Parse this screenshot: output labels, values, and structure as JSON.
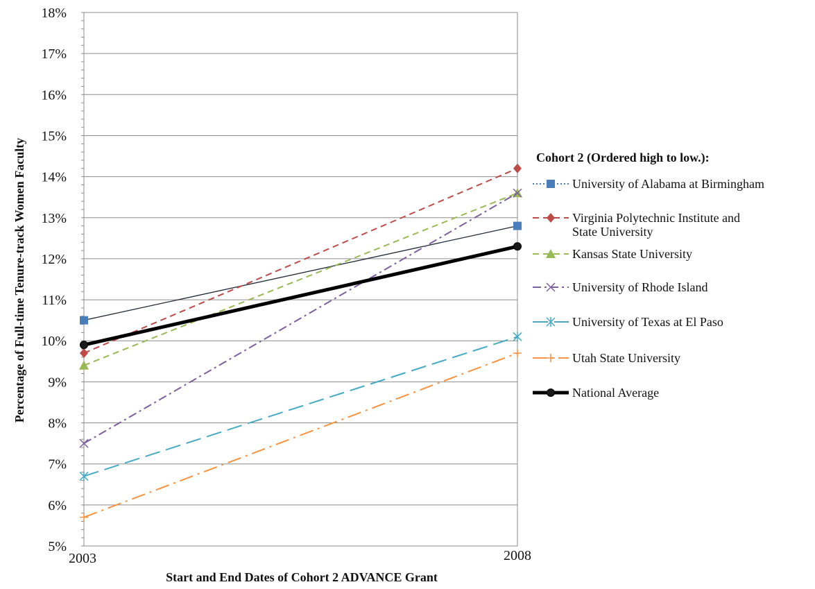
{
  "chart_data": {
    "type": "line",
    "x": [
      "2003",
      "2008"
    ],
    "ylabel": "Percentage of Full-time Tenure-track Women Faculty",
    "xlabel": "Start and End Dates of Cohort 2 ADVANCE Grant",
    "ylim": [
      0.05,
      0.18
    ],
    "ytick_step": 0.01,
    "yticks": [
      "5%",
      "6%",
      "7%",
      "8%",
      "9%",
      "10%",
      "11%",
      "12%",
      "13%",
      "14%",
      "15%",
      "16%",
      "17%",
      "18%"
    ],
    "grid": true,
    "legend_placement": "right",
    "legend_title": "Cohort 2 (Ordered  high to low.):",
    "series": [
      {
        "name": "University of Alabama at Birmingham",
        "values": [
          0.105,
          0.128
        ],
        "color": "#4a7ebb",
        "marker": "square",
        "dash": "dotted"
      },
      {
        "name": "Virginia Polytechnic Institute and State University",
        "name_lines": [
          "Virginia Polytechnic Institute and",
          "State University"
        ],
        "values": [
          0.097,
          0.142
        ],
        "color": "#be4b48",
        "marker": "diamond",
        "dash": "dashed"
      },
      {
        "name": "Kansas State University",
        "values": [
          0.094,
          0.136
        ],
        "color": "#98b954",
        "marker": "triangle",
        "dash": "dashed"
      },
      {
        "name": "University of Rhode Island",
        "values": [
          0.075,
          0.136
        ],
        "color": "#7d60a0",
        "marker": "x",
        "dash": "dashdot"
      },
      {
        "name": "University of Texas at El Paso",
        "values": [
          0.067,
          0.101
        ],
        "color": "#46aac5",
        "marker": "star",
        "dash": "longdash"
      },
      {
        "name": "Utah State University",
        "values": [
          0.057,
          0.097
        ],
        "color": "#f69240",
        "marker": "plus",
        "dash": "longdashdot"
      },
      {
        "name": "National Average",
        "values": [
          0.099,
          0.123
        ],
        "color": "#000000",
        "marker": "circle",
        "dash": "solid"
      }
    ]
  }
}
